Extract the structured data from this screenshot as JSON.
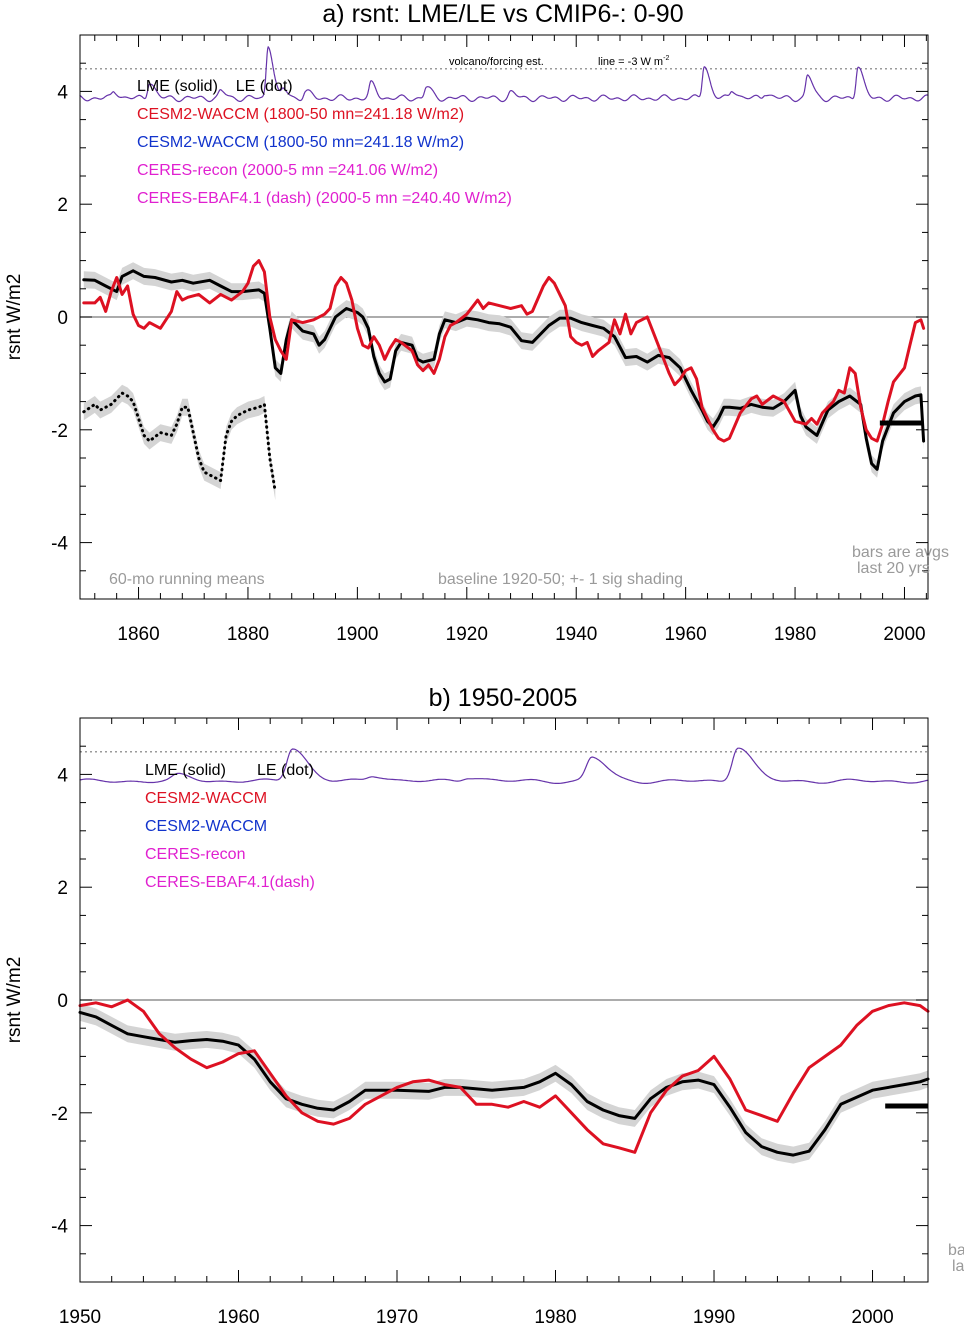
{
  "colors": {
    "black": "#000000",
    "red": "#dd1122",
    "blue": "#1133cc",
    "magenta": "#e020d0",
    "purple": "#6633aa",
    "gray_text": "#9a9a9a",
    "shade": "#d4d4d4",
    "zero_line": "#7a7a7a",
    "dotted_ref": "#7a7a7a"
  },
  "chart_data": [
    {
      "type": "line",
      "title": "a) rsnt: LME/LE vs CMIP6-: 0-90",
      "xlabel": "",
      "ylabel": "rsnt W/m2",
      "xlim": [
        1849.3,
        2004.3
      ],
      "ylim": [
        -5,
        5
      ],
      "x_ticks": [
        1860,
        1880,
        1900,
        1920,
        1940,
        1960,
        1980,
        2000
      ],
      "y_ticks": [
        -4,
        -2,
        0,
        2,
        4
      ],
      "grid": false,
      "legend": [
        {
          "text": "LME (solid)    LE (dot)",
          "color": "black"
        },
        {
          "text": "CESM2-WACCM (1800-50 mn=241.18 W/m2)",
          "color": "red"
        },
        {
          "text": "CESM2-WACCM (1800-50 mn=241.18 W/m2)",
          "color": "blue"
        },
        {
          "text": "CERES-recon (2000-5 mn =241.06 W/m2)",
          "color": "magenta"
        },
        {
          "text": "CERES-EBAF4.1 (dash) (2000-5 mn =240.40 W/m2)",
          "color": "magenta"
        }
      ],
      "annotations": {
        "volcano_label": "volcano/forcing est.",
        "line_label": "line = -3 W m",
        "line_label_sup": "-2",
        "running_means": "60-mo running means",
        "baseline": "baseline 1920-50; +- 1 sig shading",
        "bars_line1": "bars are avgs",
        "bars_line2": "last 20 yrs"
      },
      "reference_lines": {
        "zero": 0,
        "forcing_dotted": 4.4
      },
      "series": [
        {
          "name": "LME (solid)",
          "style": "solid",
          "color": "black",
          "shade_sigma": 0.15,
          "x": [
            1850,
            1852,
            1854,
            1856,
            1857,
            1859,
            1861,
            1863,
            1866,
            1868,
            1870,
            1873,
            1875,
            1877,
            1879,
            1882,
            1883,
            1884,
            1885,
            1886,
            1887,
            1888,
            1890,
            1892,
            1893,
            1894,
            1896,
            1898,
            1900,
            1901,
            1902,
            1903,
            1904,
            1905,
            1906,
            1907,
            1908,
            1910,
            1911,
            1912,
            1914,
            1915,
            1916,
            1918,
            1920,
            1922,
            1924,
            1926,
            1928,
            1930,
            1932,
            1935,
            1937,
            1939,
            1941,
            1943,
            1945,
            1947,
            1949,
            1951,
            1953,
            1955,
            1957,
            1959,
            1961,
            1963,
            1964,
            1965,
            1966,
            1967,
            1968,
            1970,
            1972,
            1974,
            1976,
            1978,
            1980,
            1981,
            1982,
            1984,
            1986,
            1988,
            1990,
            1992,
            1993,
            1994,
            1995,
            1996,
            1998,
            2000,
            2002,
            2003,
            2003.5
          ],
          "y": [
            0.66,
            0.65,
            0.55,
            0.45,
            0.72,
            0.82,
            0.72,
            0.7,
            0.62,
            0.65,
            0.6,
            0.65,
            0.55,
            0.45,
            0.45,
            0.48,
            0.42,
            -0.2,
            -0.9,
            -1.0,
            -0.4,
            -0.05,
            -0.25,
            -0.3,
            -0.5,
            -0.4,
            0.0,
            0.15,
            0.08,
            0.0,
            -0.2,
            -0.7,
            -1.0,
            -1.15,
            -1.1,
            -0.6,
            -0.45,
            -0.5,
            -0.75,
            -0.8,
            -0.75,
            -0.3,
            -0.05,
            -0.1,
            -0.02,
            -0.05,
            -0.1,
            -0.12,
            -0.18,
            -0.42,
            -0.45,
            -0.15,
            -0.02,
            -0.02,
            -0.1,
            -0.15,
            -0.2,
            -0.35,
            -0.72,
            -0.7,
            -0.8,
            -0.68,
            -0.72,
            -0.9,
            -1.3,
            -1.65,
            -1.85,
            -1.95,
            -1.8,
            -1.6,
            -1.6,
            -1.62,
            -1.55,
            -1.6,
            -1.62,
            -1.5,
            -1.3,
            -1.75,
            -1.95,
            -2.1,
            -1.65,
            -1.5,
            -1.4,
            -1.55,
            -2.15,
            -2.6,
            -2.7,
            -2.2,
            -1.7,
            -1.5,
            -1.4,
            -1.38,
            -2.2
          ]
        },
        {
          "name": "LE (dot)",
          "style": "dotted",
          "color": "black",
          "shade_sigma": 0.15,
          "x": [
            1850,
            1852,
            1853,
            1855,
            1857,
            1858,
            1859,
            1861,
            1862,
            1864,
            1866,
            1867,
            1868,
            1869,
            1871,
            1872,
            1873,
            1875,
            1876,
            1877,
            1878,
            1880,
            1882,
            1883,
            1884,
            1885
          ],
          "y": [
            -1.68,
            -1.55,
            -1.65,
            -1.55,
            -1.35,
            -1.4,
            -1.5,
            -2.1,
            -2.2,
            -2.05,
            -2.1,
            -1.9,
            -1.6,
            -1.6,
            -2.5,
            -2.75,
            -2.8,
            -2.9,
            -2.1,
            -1.85,
            -1.75,
            -1.65,
            -1.6,
            -1.55,
            -2.5,
            -3.1
          ]
        },
        {
          "name": "CESM2-WACCM",
          "style": "solid",
          "color": "red",
          "x": [
            1850,
            1852,
            1853,
            1854,
            1855,
            1856,
            1857,
            1858,
            1859,
            1860,
            1861,
            1862,
            1864,
            1866,
            1867,
            1868,
            1869,
            1871,
            1873,
            1875,
            1877,
            1879,
            1880,
            1881,
            1882,
            1883,
            1884,
            1885,
            1886,
            1887,
            1888,
            1890,
            1892,
            1894,
            1895,
            1896,
            1897,
            1898,
            1899,
            1900,
            1901,
            1902,
            1903,
            1904,
            1905,
            1906,
            1907,
            1908,
            1910,
            1911,
            1912,
            1913,
            1914,
            1915,
            1916,
            1917,
            1918,
            1920,
            1922,
            1923,
            1924,
            1926,
            1928,
            1930,
            1931,
            1932,
            1934,
            1935,
            1936,
            1938,
            1939,
            1940,
            1941,
            1942,
            1943,
            1944,
            1946,
            1947,
            1948,
            1949,
            1950,
            1951,
            1953,
            1955,
            1957,
            1958,
            1959,
            1960,
            1961,
            1962,
            1963,
            1964,
            1965,
            1966,
            1967,
            1968,
            1970,
            1972,
            1973,
            1974,
            1976,
            1978,
            1980,
            1982,
            1983,
            1984,
            1985,
            1986,
            1987,
            1988,
            1989,
            1990,
            1991,
            1992,
            1993,
            1994,
            1995,
            1996,
            1997,
            1998,
            2000,
            2001,
            2002,
            2003,
            2003.5
          ],
          "y": [
            0.25,
            0.25,
            0.35,
            0.1,
            0.45,
            0.7,
            0.4,
            0.55,
            0.05,
            -0.15,
            -0.2,
            -0.1,
            -0.2,
            0.1,
            0.45,
            0.3,
            0.35,
            0.4,
            0.25,
            0.4,
            0.3,
            0.45,
            0.6,
            0.9,
            1.0,
            0.8,
            0.0,
            -0.4,
            -0.6,
            -0.75,
            -0.05,
            -0.1,
            -0.05,
            0.05,
            0.15,
            0.55,
            0.7,
            0.6,
            0.3,
            -0.2,
            -0.5,
            -0.55,
            -0.35,
            -0.5,
            -0.75,
            -0.55,
            -0.4,
            -0.45,
            -0.6,
            -0.85,
            -0.95,
            -0.85,
            -1.0,
            -0.75,
            -0.35,
            -0.15,
            -0.1,
            0.05,
            0.3,
            0.15,
            0.25,
            0.2,
            0.15,
            0.2,
            0.05,
            0.1,
            0.55,
            0.7,
            0.6,
            0.2,
            -0.35,
            -0.45,
            -0.5,
            -0.45,
            -0.7,
            -0.6,
            -0.45,
            -0.05,
            -0.3,
            0.05,
            -0.3,
            -0.1,
            0.0,
            -0.5,
            -1.0,
            -1.2,
            -1.1,
            -0.95,
            -0.9,
            -1.1,
            -1.6,
            -1.8,
            -2.0,
            -2.15,
            -2.2,
            -2.15,
            -1.7,
            -1.45,
            -1.4,
            -1.55,
            -1.4,
            -1.5,
            -1.85,
            -1.9,
            -1.8,
            -1.9,
            -1.7,
            -1.6,
            -1.5,
            -1.3,
            -1.35,
            -0.9,
            -1.0,
            -1.6,
            -2.0,
            -2.15,
            -2.2,
            -1.9,
            -1.5,
            -1.15,
            -0.9,
            -0.5,
            -0.1,
            -0.05,
            -0.2
          ]
        },
        {
          "name": "volcano/forcing est.",
          "style": "solid",
          "color": "purple",
          "base": 3.88,
          "baseline_wiggle": 0.06,
          "peaks": [
            {
              "x": 1855.5,
              "h": 0.12
            },
            {
              "x": 1862,
              "h": 0.3
            },
            {
              "x": 1875,
              "h": 0.12
            },
            {
              "x": 1883.7,
              "h": 0.95
            },
            {
              "x": 1886.5,
              "h": 0.15
            },
            {
              "x": 1890.5,
              "h": 0.12
            },
            {
              "x": 1902.5,
              "h": 0.25
            },
            {
              "x": 1912.6,
              "h": 0.2
            },
            {
              "x": 1928,
              "h": 0.1
            },
            {
              "x": 1963.4,
              "h": 0.6
            },
            {
              "x": 1968.5,
              "h": 0.15
            },
            {
              "x": 1974.5,
              "h": 0.1
            },
            {
              "x": 1982.3,
              "h": 0.4
            },
            {
              "x": 1991.5,
              "h": 0.6
            }
          ]
        }
      ],
      "bars": [
        {
          "x_start": 1995.5,
          "x_end": 2003.5,
          "y": -1.88,
          "color": "black"
        }
      ]
    },
    {
      "type": "line",
      "title": "b) 1950-2005",
      "xlabel": "",
      "ylabel": "rsnt W/m2",
      "xlim": [
        1950,
        2003.5
      ],
      "ylim": [
        -5,
        5
      ],
      "x_ticks": [
        1950,
        1960,
        1970,
        1980,
        1990,
        2000
      ],
      "y_ticks": [
        -4,
        -2,
        0,
        2,
        4
      ],
      "grid": false,
      "legend": [
        {
          "text": "LME (solid)       LE (dot)",
          "color": "black"
        },
        {
          "text": "CESM2-WACCM",
          "color": "red"
        },
        {
          "text": "CESM2-WACCM",
          "color": "blue"
        },
        {
          "text": "CERES-recon",
          "color": "magenta"
        },
        {
          "text": "CERES-EBAF4.1(dash)",
          "color": "magenta"
        }
      ],
      "annotations": {
        "bars_line1": "ba",
        "bars_line2": "la"
      },
      "reference_lines": {
        "zero": 0,
        "forcing_dotted": 4.4
      },
      "series": [
        {
          "name": "LME (solid)",
          "style": "solid",
          "color": "black",
          "shade_sigma": 0.15,
          "x": [
            1950,
            1951,
            1952,
            1953,
            1954,
            1955,
            1956,
            1957,
            1958,
            1959,
            1960,
            1961,
            1962,
            1963,
            1964,
            1965,
            1966,
            1967,
            1968,
            1970,
            1972,
            1973,
            1974,
            1976,
            1978,
            1979,
            1980,
            1981,
            1982,
            1983,
            1984,
            1985,
            1986,
            1987,
            1988,
            1989,
            1990,
            1991,
            1992,
            1993,
            1994,
            1995,
            1996,
            1997,
            1998,
            2000,
            2002,
            2003,
            2003.5
          ],
          "y": [
            -0.22,
            -0.3,
            -0.45,
            -0.6,
            -0.65,
            -0.7,
            -0.75,
            -0.72,
            -0.7,
            -0.73,
            -0.8,
            -1.05,
            -1.45,
            -1.75,
            -1.85,
            -1.92,
            -1.95,
            -1.8,
            -1.6,
            -1.6,
            -1.62,
            -1.55,
            -1.55,
            -1.6,
            -1.55,
            -1.45,
            -1.3,
            -1.5,
            -1.8,
            -1.95,
            -2.05,
            -2.1,
            -1.75,
            -1.55,
            -1.45,
            -1.42,
            -1.5,
            -1.9,
            -2.35,
            -2.6,
            -2.7,
            -2.75,
            -2.68,
            -2.3,
            -1.85,
            -1.6,
            -1.5,
            -1.45,
            -1.4
          ]
        },
        {
          "name": "CESM2-WACCM",
          "style": "solid",
          "color": "red",
          "x": [
            1950,
            1951,
            1952,
            1953,
            1954,
            1955,
            1956,
            1957,
            1958,
            1959,
            1960,
            1961,
            1962,
            1963,
            1964,
            1965,
            1966,
            1967,
            1968,
            1970,
            1971,
            1972,
            1973,
            1974,
            1975,
            1976,
            1977,
            1978,
            1979,
            1980,
            1981,
            1982,
            1983,
            1984,
            1985,
            1986,
            1987,
            1988,
            1989,
            1990,
            1991,
            1992,
            1993,
            1994,
            1995,
            1996,
            1997,
            1998,
            1999,
            2000,
            2001,
            2002,
            2003,
            2003.5
          ],
          "y": [
            -0.1,
            -0.05,
            -0.12,
            0.0,
            -0.2,
            -0.6,
            -0.85,
            -1.05,
            -1.2,
            -1.1,
            -0.95,
            -0.9,
            -1.3,
            -1.7,
            -2.0,
            -2.15,
            -2.2,
            -2.1,
            -1.85,
            -1.55,
            -1.45,
            -1.42,
            -1.5,
            -1.55,
            -1.85,
            -1.85,
            -1.9,
            -1.8,
            -1.9,
            -1.7,
            -2.0,
            -2.3,
            -2.55,
            -2.62,
            -2.7,
            -2.0,
            -1.6,
            -1.35,
            -1.25,
            -1.0,
            -1.4,
            -1.95,
            -2.05,
            -2.15,
            -1.65,
            -1.2,
            -1.0,
            -0.8,
            -0.45,
            -0.2,
            -0.1,
            -0.05,
            -0.1,
            -0.2
          ]
        },
        {
          "name": "volcano/forcing est.",
          "style": "solid",
          "color": "purple",
          "base": 3.88,
          "baseline_wiggle": 0.04,
          "peaks": [
            {
              "x": 1956.2,
              "h": 0.1
            },
            {
              "x": 1963.4,
              "h": 0.6
            },
            {
              "x": 1968.5,
              "h": 0.1
            },
            {
              "x": 1974.5,
              "h": 0.08
            },
            {
              "x": 1982.3,
              "h": 0.42
            },
            {
              "x": 1991.5,
              "h": 0.62
            }
          ]
        }
      ],
      "bars": [
        {
          "x_start": 2000.8,
          "x_end": 2003.5,
          "y": -1.88,
          "color": "black"
        }
      ]
    }
  ]
}
